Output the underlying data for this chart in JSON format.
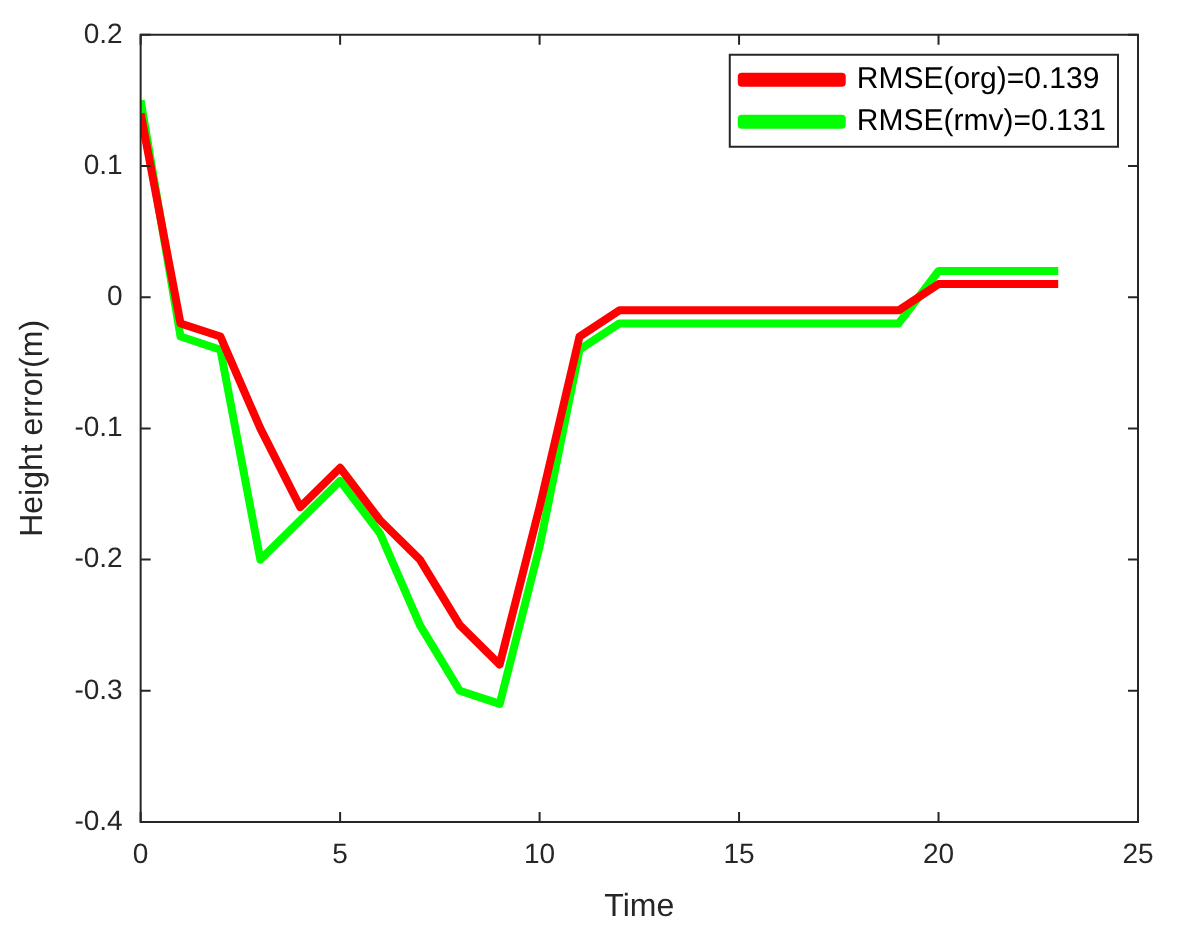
{
  "chart_data": {
    "type": "line",
    "xlabel": "Time",
    "ylabel": "Height error(m)",
    "x": [
      0,
      1,
      2,
      3,
      4,
      5,
      6,
      7,
      8,
      9,
      10,
      11,
      12,
      13,
      14,
      15,
      16,
      17,
      18,
      19,
      20,
      21,
      22,
      23
    ],
    "series": [
      {
        "name": "RMSE(org)=0.139",
        "color": "#ff0000",
        "values": [
          0.14,
          -0.02,
          -0.03,
          -0.1,
          -0.16,
          -0.13,
          -0.17,
          -0.2,
          -0.25,
          -0.28,
          -0.16,
          -0.03,
          -0.01,
          -0.01,
          -0.01,
          -0.01,
          -0.01,
          -0.01,
          -0.01,
          -0.01,
          0.01,
          0.01,
          0.01,
          0.01
        ]
      },
      {
        "name": "RMSE(rmv)=0.131",
        "color": "#00ff00",
        "values": [
          0.15,
          -0.03,
          -0.04,
          -0.2,
          -0.17,
          -0.14,
          -0.18,
          -0.25,
          -0.3,
          -0.31,
          -0.19,
          -0.04,
          -0.02,
          -0.02,
          -0.02,
          -0.02,
          -0.02,
          -0.02,
          -0.02,
          -0.02,
          0.02,
          0.02,
          0.02,
          0.02
        ]
      }
    ],
    "xlim": [
      0,
      25
    ],
    "xticks": [
      0,
      5,
      10,
      15,
      20,
      25
    ],
    "ylim": [
      -0.4,
      0.2
    ],
    "yticks": [
      -0.4,
      -0.3,
      -0.2,
      -0.1,
      0,
      0.1,
      0.2
    ],
    "grid": false,
    "legend": "top right",
    "marker": "none",
    "line_style": "solid"
  }
}
